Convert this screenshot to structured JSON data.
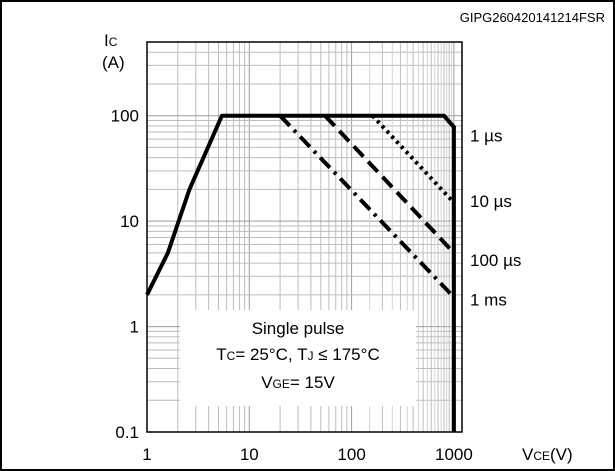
{
  "figure_code": "GIPG260420141214FSR",
  "chart_data": {
    "type": "line",
    "title": "",
    "xscale": "log",
    "yscale": "log",
    "xlim": [
      1,
      1200
    ],
    "ylim": [
      0.1,
      500
    ],
    "grid": true,
    "ylabel": {
      "main": "I",
      "sub": "C",
      "unit": "(A)"
    },
    "xlabel": {
      "main": "V",
      "sub": "CE",
      "unit": "(V)"
    },
    "xticks": [
      {
        "value": 1,
        "label": "1"
      },
      {
        "value": 10,
        "label": "10"
      },
      {
        "value": 100,
        "label": "100"
      },
      {
        "value": 1000,
        "label": "1000"
      }
    ],
    "yticks": [
      {
        "value": 0.1,
        "label": "0.1"
      },
      {
        "value": 1,
        "label": "1"
      },
      {
        "value": 10,
        "label": "10"
      },
      {
        "value": 100,
        "label": "100"
      }
    ],
    "series": [
      {
        "name": "1 µs",
        "style": "dotted",
        "points": [
          [
            1,
            2
          ],
          [
            1.6,
            5
          ],
          [
            2.6,
            20
          ],
          [
            5.4,
            100
          ],
          [
            800,
            100
          ],
          [
            1000,
            78
          ]
        ]
      },
      {
        "name": "10 µs",
        "style": "dash-dot-dot",
        "points": [
          [
            160,
            100
          ],
          [
            1000,
            15
          ]
        ]
      },
      {
        "name": "100 µs",
        "style": "dashed",
        "points": [
          [
            55,
            100
          ],
          [
            1000,
            5
          ]
        ]
      },
      {
        "name": "1 ms",
        "style": "dash-dot",
        "points": [
          [
            20,
            100
          ],
          [
            1000,
            1.9
          ]
        ]
      },
      {
        "name": "",
        "style": "solid",
        "points": [
          [
            1000,
            80
          ],
          [
            1000,
            0.1
          ]
        ]
      }
    ],
    "series_labels": [
      {
        "label": "1 µs",
        "y": 65
      },
      {
        "label": "10 µs",
        "y": 15.5
      },
      {
        "label": "100 µs",
        "y": 4.3
      },
      {
        "label": "1 ms",
        "y": 1.8
      }
    ],
    "annotation": {
      "line1": "Single pulse",
      "line2_parts": [
        "T",
        "C",
        "= 25°C, T",
        "J",
        " ≤ 175°C"
      ],
      "line3_parts": [
        "V",
        "GE",
        "= 15V"
      ]
    }
  }
}
